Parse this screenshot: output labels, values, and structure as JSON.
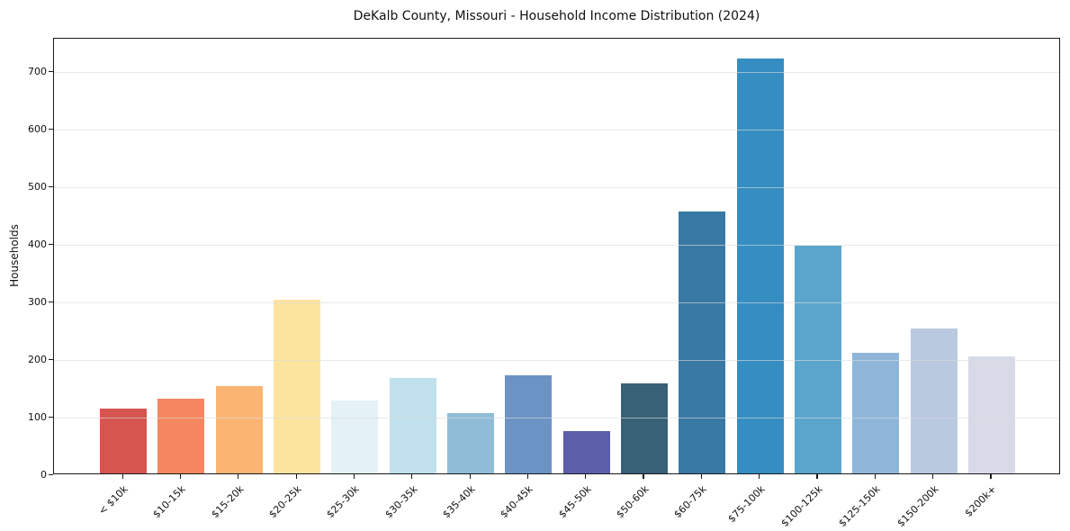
{
  "chart_data": {
    "type": "bar",
    "title": "DeKalb County, Missouri - Household Income Distribution (2024)",
    "xlabel": "",
    "ylabel": "Households",
    "categories": [
      "< $10k",
      "$10-15k",
      "$15-20k",
      "$20-25k",
      "$25-30k",
      "$30-35k",
      "$35-40k",
      "$40-45k",
      "$45-50k",
      "$50-60k",
      "$60-75k",
      "$75-100k",
      "$100-125k",
      "$125-150k",
      "$150-200k",
      "$200k+"
    ],
    "values": [
      112,
      129,
      151,
      302,
      126,
      165,
      104,
      170,
      74,
      156,
      455,
      721,
      395,
      210,
      252,
      203
    ],
    "bar_colors": [
      "#d6554f",
      "#f4875f",
      "#fbb471",
      "#fde49e",
      "#e4f1f7",
      "#bfe0ec",
      "#90bcd8",
      "#6b93c4",
      "#5b5ea9",
      "#386177",
      "#3879a5",
      "#368dc1",
      "#5ba5cc",
      "#8fb6d9",
      "#b9c9e0",
      "#d8dae8"
    ],
    "yticks": [
      0,
      100,
      200,
      300,
      400,
      500,
      600,
      700
    ],
    "ylim": [
      0,
      758
    ],
    "grid": "horizontal",
    "legend_position": "none",
    "axis_color": "#1a1a1a",
    "gridline_color": "#dcdcdc",
    "background_color": "#ffffff"
  }
}
